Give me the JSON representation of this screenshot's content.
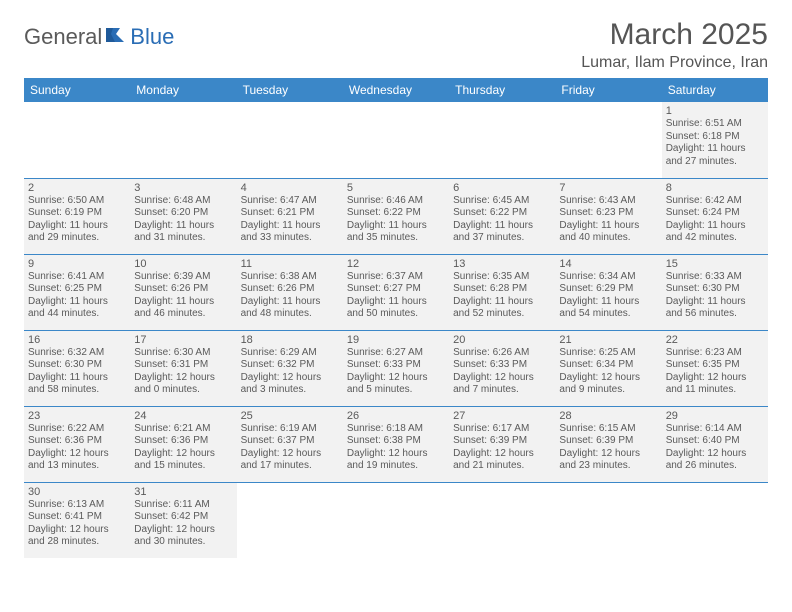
{
  "brand": {
    "part1": "General",
    "part2": "Blue"
  },
  "title": "March 2025",
  "location": "Lumar, Ilam Province, Iran",
  "colors": {
    "header_bg": "#3b87c8",
    "header_text": "#ffffff",
    "cell_bg": "#f2f2f2",
    "border": "#3b87c8",
    "text": "#5a5a5a",
    "page_bg": "#ffffff"
  },
  "day_headers": [
    "Sunday",
    "Monday",
    "Tuesday",
    "Wednesday",
    "Thursday",
    "Friday",
    "Saturday"
  ],
  "weeks": [
    [
      null,
      null,
      null,
      null,
      null,
      null,
      {
        "n": "1",
        "sunrise": "6:51 AM",
        "sunset": "6:18 PM",
        "daylight": "11 hours and 27 minutes."
      }
    ],
    [
      {
        "n": "2",
        "sunrise": "6:50 AM",
        "sunset": "6:19 PM",
        "daylight": "11 hours and 29 minutes."
      },
      {
        "n": "3",
        "sunrise": "6:48 AM",
        "sunset": "6:20 PM",
        "daylight": "11 hours and 31 minutes."
      },
      {
        "n": "4",
        "sunrise": "6:47 AM",
        "sunset": "6:21 PM",
        "daylight": "11 hours and 33 minutes."
      },
      {
        "n": "5",
        "sunrise": "6:46 AM",
        "sunset": "6:22 PM",
        "daylight": "11 hours and 35 minutes."
      },
      {
        "n": "6",
        "sunrise": "6:45 AM",
        "sunset": "6:22 PM",
        "daylight": "11 hours and 37 minutes."
      },
      {
        "n": "7",
        "sunrise": "6:43 AM",
        "sunset": "6:23 PM",
        "daylight": "11 hours and 40 minutes."
      },
      {
        "n": "8",
        "sunrise": "6:42 AM",
        "sunset": "6:24 PM",
        "daylight": "11 hours and 42 minutes."
      }
    ],
    [
      {
        "n": "9",
        "sunrise": "6:41 AM",
        "sunset": "6:25 PM",
        "daylight": "11 hours and 44 minutes."
      },
      {
        "n": "10",
        "sunrise": "6:39 AM",
        "sunset": "6:26 PM",
        "daylight": "11 hours and 46 minutes."
      },
      {
        "n": "11",
        "sunrise": "6:38 AM",
        "sunset": "6:26 PM",
        "daylight": "11 hours and 48 minutes."
      },
      {
        "n": "12",
        "sunrise": "6:37 AM",
        "sunset": "6:27 PM",
        "daylight": "11 hours and 50 minutes."
      },
      {
        "n": "13",
        "sunrise": "6:35 AM",
        "sunset": "6:28 PM",
        "daylight": "11 hours and 52 minutes."
      },
      {
        "n": "14",
        "sunrise": "6:34 AM",
        "sunset": "6:29 PM",
        "daylight": "11 hours and 54 minutes."
      },
      {
        "n": "15",
        "sunrise": "6:33 AM",
        "sunset": "6:30 PM",
        "daylight": "11 hours and 56 minutes."
      }
    ],
    [
      {
        "n": "16",
        "sunrise": "6:32 AM",
        "sunset": "6:30 PM",
        "daylight": "11 hours and 58 minutes."
      },
      {
        "n": "17",
        "sunrise": "6:30 AM",
        "sunset": "6:31 PM",
        "daylight": "12 hours and 0 minutes."
      },
      {
        "n": "18",
        "sunrise": "6:29 AM",
        "sunset": "6:32 PM",
        "daylight": "12 hours and 3 minutes."
      },
      {
        "n": "19",
        "sunrise": "6:27 AM",
        "sunset": "6:33 PM",
        "daylight": "12 hours and 5 minutes."
      },
      {
        "n": "20",
        "sunrise": "6:26 AM",
        "sunset": "6:33 PM",
        "daylight": "12 hours and 7 minutes."
      },
      {
        "n": "21",
        "sunrise": "6:25 AM",
        "sunset": "6:34 PM",
        "daylight": "12 hours and 9 minutes."
      },
      {
        "n": "22",
        "sunrise": "6:23 AM",
        "sunset": "6:35 PM",
        "daylight": "12 hours and 11 minutes."
      }
    ],
    [
      {
        "n": "23",
        "sunrise": "6:22 AM",
        "sunset": "6:36 PM",
        "daylight": "12 hours and 13 minutes."
      },
      {
        "n": "24",
        "sunrise": "6:21 AM",
        "sunset": "6:36 PM",
        "daylight": "12 hours and 15 minutes."
      },
      {
        "n": "25",
        "sunrise": "6:19 AM",
        "sunset": "6:37 PM",
        "daylight": "12 hours and 17 minutes."
      },
      {
        "n": "26",
        "sunrise": "6:18 AM",
        "sunset": "6:38 PM",
        "daylight": "12 hours and 19 minutes."
      },
      {
        "n": "27",
        "sunrise": "6:17 AM",
        "sunset": "6:39 PM",
        "daylight": "12 hours and 21 minutes."
      },
      {
        "n": "28",
        "sunrise": "6:15 AM",
        "sunset": "6:39 PM",
        "daylight": "12 hours and 23 minutes."
      },
      {
        "n": "29",
        "sunrise": "6:14 AM",
        "sunset": "6:40 PM",
        "daylight": "12 hours and 26 minutes."
      }
    ],
    [
      {
        "n": "30",
        "sunrise": "6:13 AM",
        "sunset": "6:41 PM",
        "daylight": "12 hours and 28 minutes."
      },
      {
        "n": "31",
        "sunrise": "6:11 AM",
        "sunset": "6:42 PM",
        "daylight": "12 hours and 30 minutes."
      },
      null,
      null,
      null,
      null,
      null
    ]
  ],
  "labels": {
    "sunrise": "Sunrise:",
    "sunset": "Sunset:",
    "daylight": "Daylight:"
  }
}
